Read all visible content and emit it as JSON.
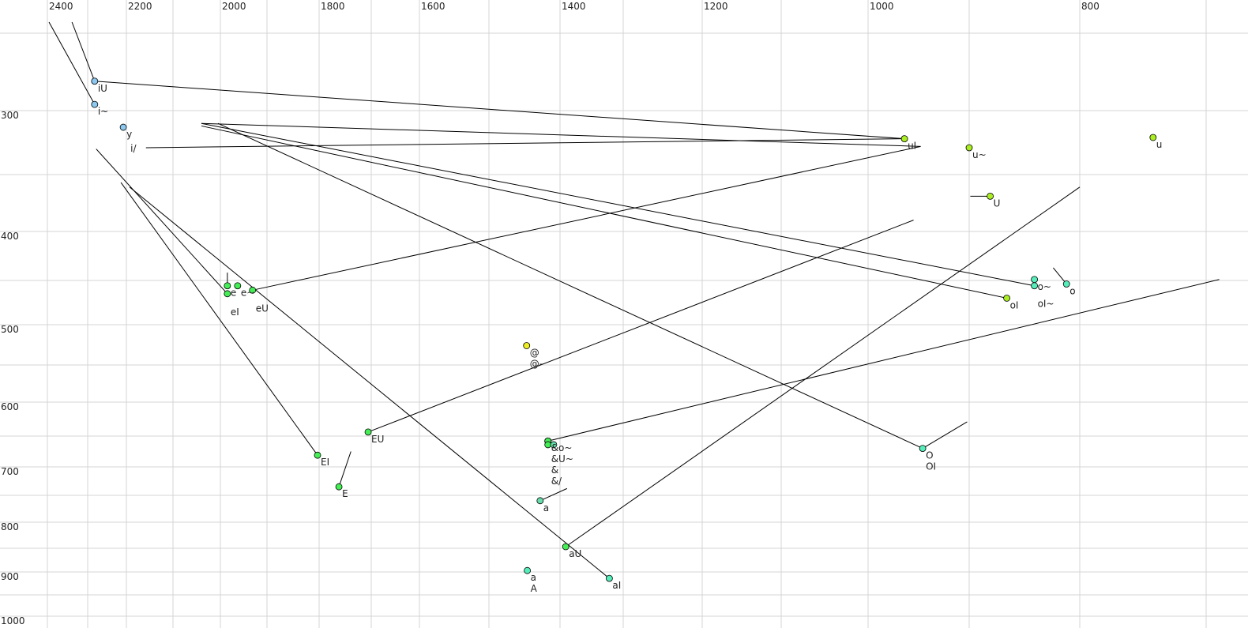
{
  "chart_data": {
    "type": "scatter",
    "title": "",
    "xlabel": "",
    "ylabel": "",
    "x_axis": {
      "direction": "reversed",
      "scale": "nonlinear",
      "ticks": [
        2400,
        2200,
        2000,
        1800,
        1600,
        1400,
        1200,
        1000,
        800
      ],
      "position": "top"
    },
    "y_axis": {
      "direction": "downward",
      "scale": "nonlinear",
      "ticks": [
        300,
        400,
        500,
        600,
        700,
        800,
        900,
        1000
      ],
      "position": "left"
    },
    "grid": true,
    "colors": {
      "i": "#8cc8f0",
      "e": "#44ee55",
      "o": "#55eebb",
      "u": "#aaee22",
      "schwa": "#eeee22",
      "a_light": "#66ddaa",
      "line": "#000000"
    },
    "points": [
      {
        "label": "iU",
        "x": 2282,
        "y": 281,
        "color": "i"
      },
      {
        "label": "i~",
        "x": 2282,
        "y": 296,
        "color": "i"
      },
      {
        "label": "y",
        "x": 2208,
        "y": 313,
        "color": "i"
      },
      {
        "label": "i/",
        "x": 2198,
        "y": 324,
        "color": null
      },
      {
        "label": "e",
        "x": 1985,
        "y": 456,
        "color": "e"
      },
      {
        "label": "eI",
        "x": 1985,
        "y": 465,
        "color": "e"
      },
      {
        "label": "e~",
        "x": 1963,
        "y": 456,
        "color": "e"
      },
      {
        "label": "eU",
        "x": 1931,
        "y": 461,
        "color": "e"
      },
      {
        "label": "EU",
        "x": 1706,
        "y": 644,
        "color": "e"
      },
      {
        "label": "EI",
        "x": 1803,
        "y": 681,
        "color": "e"
      },
      {
        "label": "E",
        "x": 1762,
        "y": 735,
        "color": "e"
      },
      {
        "label": "@",
        "x": 1447,
        "y": 526,
        "color": "schwa"
      },
      {
        "label": "@-",
        "x": 1447,
        "y": 526,
        "color": null
      },
      {
        "label": "&o~",
        "x": 1417,
        "y": 658,
        "color": "e"
      },
      {
        "label": "&U~",
        "x": 1417,
        "y": 658,
        "color": "e"
      },
      {
        "label": "&",
        "x": 1417,
        "y": 658,
        "color": "e"
      },
      {
        "label": "&/",
        "x": 1417,
        "y": 658,
        "color": null
      },
      {
        "label": "",
        "x": 1417,
        "y": 664,
        "color": "e"
      },
      {
        "label": "",
        "x": 1409,
        "y": 664,
        "color": "a_light"
      },
      {
        "label": "a",
        "x": 1428,
        "y": 760,
        "color": "a_light",
        "faded": true
      },
      {
        "label": "aU",
        "x": 1391,
        "y": 847,
        "color": "e"
      },
      {
        "label": "a",
        "x": 1446,
        "y": 897,
        "color": "o"
      },
      {
        "label": "A",
        "x": 1446,
        "y": 897,
        "color": null
      },
      {
        "label": "aI",
        "x": 1322,
        "y": 914,
        "color": "o"
      },
      {
        "label": "uI",
        "x": 964,
        "y": 322,
        "color": "u"
      },
      {
        "label": "u~",
        "x": 900,
        "y": 329,
        "color": "u"
      },
      {
        "label": "U",
        "x": 881,
        "y": 369,
        "color": "u"
      },
      {
        "label": "u",
        "x": 742,
        "y": 321,
        "color": "u"
      },
      {
        "label": "o~",
        "x": 841,
        "y": 449,
        "color": "o"
      },
      {
        "label": "oI~",
        "x": 841,
        "y": 456,
        "color": "o"
      },
      {
        "label": "o",
        "x": 812,
        "y": 454,
        "color": "o"
      },
      {
        "label": "oI",
        "x": 866,
        "y": 470,
        "color": "u"
      },
      {
        "label": "O",
        "x": 946,
        "y": 670,
        "color": "o"
      },
      {
        "label": "OI",
        "x": 946,
        "y": 670,
        "color": null
      }
    ],
    "trajectories": [
      {
        "from": [
          2396,
          240
        ],
        "to": [
          2282,
          296
        ]
      },
      {
        "from": [
          2339,
          240
        ],
        "to": [
          2282,
          281
        ]
      },
      {
        "from": [
          2282,
          281
        ],
        "to": [
          964,
          322
        ]
      },
      {
        "from": [
          2158,
          329
        ],
        "to": [
          964,
          322
        ]
      },
      {
        "from": [
          2040,
          310
        ],
        "to": [
          948,
          328
        ]
      },
      {
        "from": [
          948,
          328
        ],
        "to": [
          1931,
          461
        ]
      },
      {
        "from": [
          2040,
          310
        ],
        "to": [
          841,
          456
        ]
      },
      {
        "from": [
          2040,
          312
        ],
        "to": [
          866,
          470
        ]
      },
      {
        "from": [
          2005,
          310
        ],
        "to": [
          946,
          670
        ]
      },
      {
        "from": [
          946,
          670
        ],
        "to": [
          902,
          629
        ]
      },
      {
        "from": [
          2278,
          330
        ],
        "to": [
          1985,
          465
        ]
      },
      {
        "from": [
          2214,
          357
        ],
        "to": [
          1803,
          681
        ]
      },
      {
        "from": [
          2193,
          361
        ],
        "to": [
          1322,
          914
        ]
      },
      {
        "from": [
          1985,
          442
        ],
        "to": [
          1985,
          456
        ]
      },
      {
        "from": [
          955,
          390
        ],
        "to": [
          1706,
          644
        ]
      },
      {
        "from": [
          800,
          361
        ],
        "to": [
          1391,
          847
        ]
      },
      {
        "from": [
          690,
          449
        ],
        "to": [
          1417,
          658
        ]
      },
      {
        "from": [
          1739,
          675
        ],
        "to": [
          1762,
          735
        ]
      },
      {
        "from": [
          1389,
          738
        ],
        "to": [
          1428,
          760
        ],
        "faded": true
      },
      {
        "from": [
          899,
          369
        ],
        "to": [
          881,
          369
        ]
      },
      {
        "from": [
          824,
          437
        ],
        "to": [
          812,
          454
        ]
      }
    ]
  }
}
